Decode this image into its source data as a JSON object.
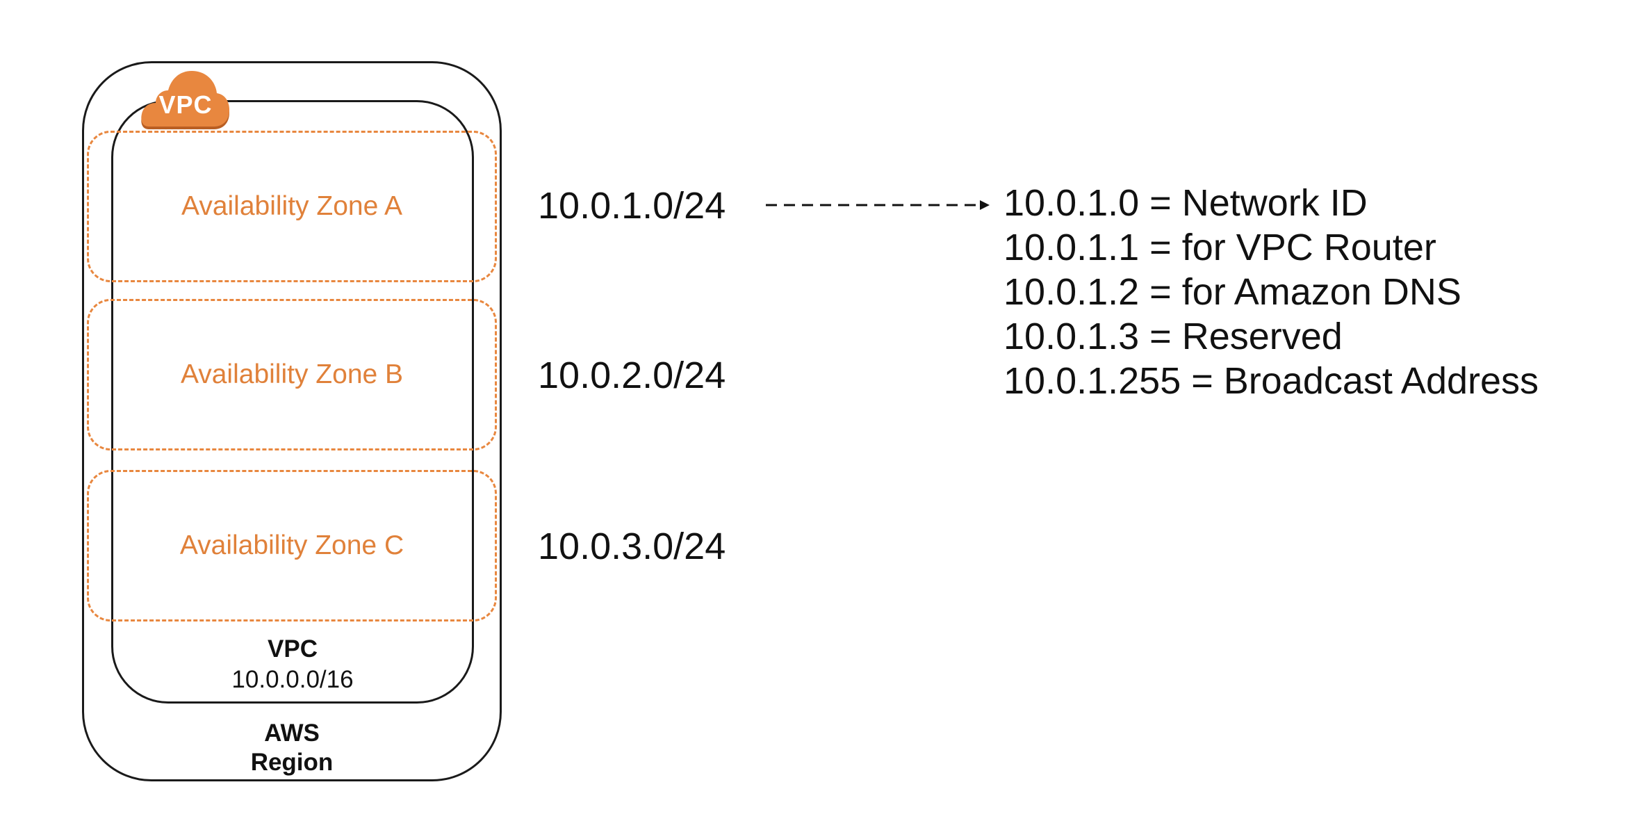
{
  "region": {
    "label_line1": "AWS",
    "label_line2": "Region"
  },
  "vpc": {
    "icon_label": "VPC",
    "name": "VPC",
    "cidr": "10.0.0.0/16",
    "accent_color": "#e8873f"
  },
  "availability_zones": [
    {
      "label": "Availability Zone A",
      "subnet": "10.0.1.0/24"
    },
    {
      "label": "Availability Zone B",
      "subnet": "10.0.2.0/24"
    },
    {
      "label": "Availability Zone C",
      "subnet": "10.0.3.0/24"
    }
  ],
  "reserved_addresses": [
    "10.0.1.0 = Network ID",
    "10.0.1.1 = for VPC Router",
    "10.0.1.2 = for Amazon DNS",
    "10.0.1.3 = Reserved",
    "10.0.1.255 = Broadcast Address"
  ]
}
